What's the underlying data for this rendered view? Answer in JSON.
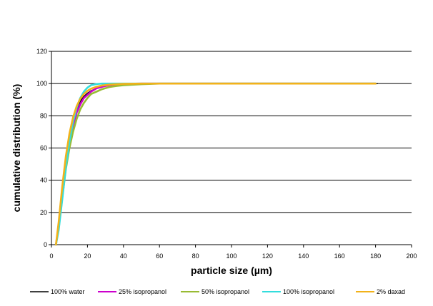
{
  "chart_data": {
    "type": "line",
    "title": "",
    "xlabel": "particle size (µm)",
    "ylabel": "cumulative distribution (%)",
    "xlim": [
      0,
      200
    ],
    "ylim": [
      0,
      120
    ],
    "xticks": [
      0,
      20,
      40,
      60,
      80,
      100,
      120,
      140,
      160,
      180,
      200
    ],
    "yticks": [
      0,
      20,
      40,
      60,
      80,
      100,
      120
    ],
    "grid": "horizontal",
    "legend_position": "bottom",
    "series": [
      {
        "name": "100% water",
        "color": "#000000",
        "x": [
          2.5,
          4,
          6,
          8,
          10,
          12,
          14,
          16,
          18,
          20,
          22,
          25,
          28,
          32,
          36,
          40,
          50,
          60,
          80,
          100,
          140,
          181
        ],
        "y": [
          0,
          12,
          33,
          52,
          66,
          76,
          84,
          89,
          92,
          94,
          95.5,
          97,
          98,
          98.8,
          99.3,
          99.6,
          99.9,
          100,
          100,
          100,
          100,
          100
        ]
      },
      {
        "name": "25% isopropanol",
        "color": "#cc00cc",
        "x": [
          2.5,
          4,
          6,
          8,
          10,
          12,
          14,
          16,
          18,
          20,
          22,
          25,
          28,
          32,
          36,
          40,
          50,
          60,
          80,
          100,
          140,
          180
        ],
        "y": [
          0,
          11,
          31,
          50,
          64,
          74,
          82,
          87,
          91,
          93,
          95,
          97,
          98,
          99,
          99.5,
          99.8,
          100,
          100,
          100,
          100,
          100,
          100
        ]
      },
      {
        "name": "50% isopropanol",
        "color": "#99bb33",
        "x": [
          2.5,
          4,
          6,
          8,
          10,
          12,
          14,
          16,
          18,
          20,
          22,
          25,
          28,
          32,
          36,
          40,
          50,
          60,
          80,
          100,
          140,
          180
        ],
        "y": [
          0,
          10,
          29,
          47,
          60,
          70,
          78,
          84,
          88,
          91,
          93.5,
          95,
          96.5,
          97.8,
          98.5,
          99,
          99.6,
          100,
          100,
          100,
          100,
          100
        ]
      },
      {
        "name": "100% isopropanol",
        "color": "#33dddd",
        "x": [
          2.5,
          4,
          6,
          8,
          10,
          12,
          14,
          16,
          18,
          20,
          22,
          25,
          28,
          32,
          36,
          40,
          50,
          60,
          80,
          100,
          140,
          180
        ],
        "y": [
          0,
          9,
          28,
          48,
          64,
          76,
          85,
          91,
          95,
          97.5,
          99,
          99.7,
          100,
          100,
          100,
          100,
          100,
          100,
          100,
          100,
          100,
          100
        ]
      },
      {
        "name": "2% daxad",
        "color": "#f2b21a",
        "x": [
          2.5,
          4,
          6,
          8,
          10,
          12,
          14,
          16,
          18,
          20,
          22,
          25,
          28,
          32,
          36,
          40,
          50,
          60,
          80,
          100,
          140,
          180
        ],
        "y": [
          0,
          14,
          36,
          55,
          69,
          79,
          86,
          90.5,
          93.5,
          95.5,
          96.8,
          98,
          98.8,
          99.3,
          99.6,
          99.8,
          100,
          100,
          100,
          100,
          100,
          100
        ]
      }
    ]
  }
}
